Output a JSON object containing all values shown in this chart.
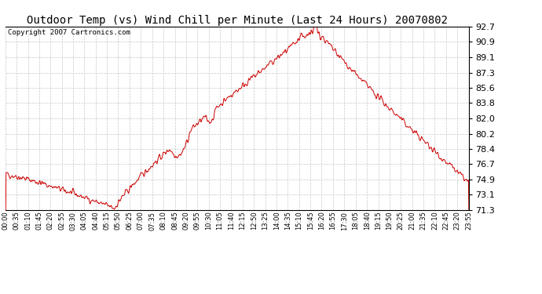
{
  "title": "Outdoor Temp (vs) Wind Chill per Minute (Last 24 Hours) 20070802",
  "copyright": "Copyright 2007 Cartronics.com",
  "line_color": "#cc0000",
  "bg_color": "#ffffff",
  "grid_color": "#c8c8c8",
  "yticks": [
    71.3,
    73.1,
    74.9,
    76.7,
    78.4,
    80.2,
    82.0,
    83.8,
    85.6,
    87.3,
    89.1,
    90.9,
    92.7
  ],
  "ymin": 71.3,
  "ymax": 92.7,
  "xtick_labels": [
    "00:00",
    "00:35",
    "01:10",
    "01:45",
    "02:20",
    "02:55",
    "03:30",
    "04:05",
    "04:40",
    "05:15",
    "05:50",
    "06:25",
    "07:00",
    "07:35",
    "08:10",
    "08:45",
    "09:20",
    "09:55",
    "10:30",
    "11:05",
    "11:40",
    "12:15",
    "12:50",
    "13:25",
    "14:00",
    "14:35",
    "15:10",
    "15:45",
    "16:20",
    "16:55",
    "17:30",
    "18:05",
    "18:40",
    "19:15",
    "19:50",
    "20:25",
    "21:00",
    "21:35",
    "22:10",
    "22:45",
    "23:20",
    "23:55"
  ],
  "title_fontsize": 10,
  "copyright_fontsize": 6.5,
  "ytick_fontsize": 8,
  "xtick_fontsize": 6
}
